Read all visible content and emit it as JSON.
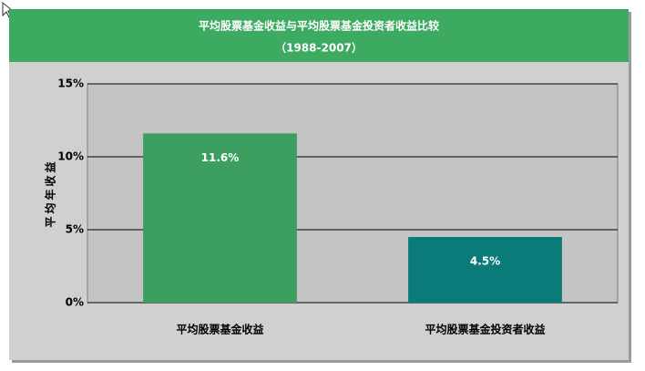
{
  "chart_data": {
    "type": "bar",
    "title": "平均股票基金收益与平均股票基金投资者收益比较",
    "subtitle": "（1988-2007）",
    "y_label": "平均年收益",
    "categories": [
      "平均股票基金收益",
      "平均股票基金投资者收益"
    ],
    "values": [
      11.6,
      4.5
    ],
    "value_labels": [
      "11.6%",
      "4.5%"
    ],
    "colors": [
      "#3c9e5f",
      "#0a7b78"
    ],
    "ylim": [
      0,
      15
    ],
    "yticks": [
      {
        "value": 0,
        "label": "0%"
      },
      {
        "value": 5,
        "label": "5%"
      },
      {
        "value": 10,
        "label": "10%"
      },
      {
        "value": 15,
        "label": "15%"
      }
    ],
    "grid": true
  }
}
